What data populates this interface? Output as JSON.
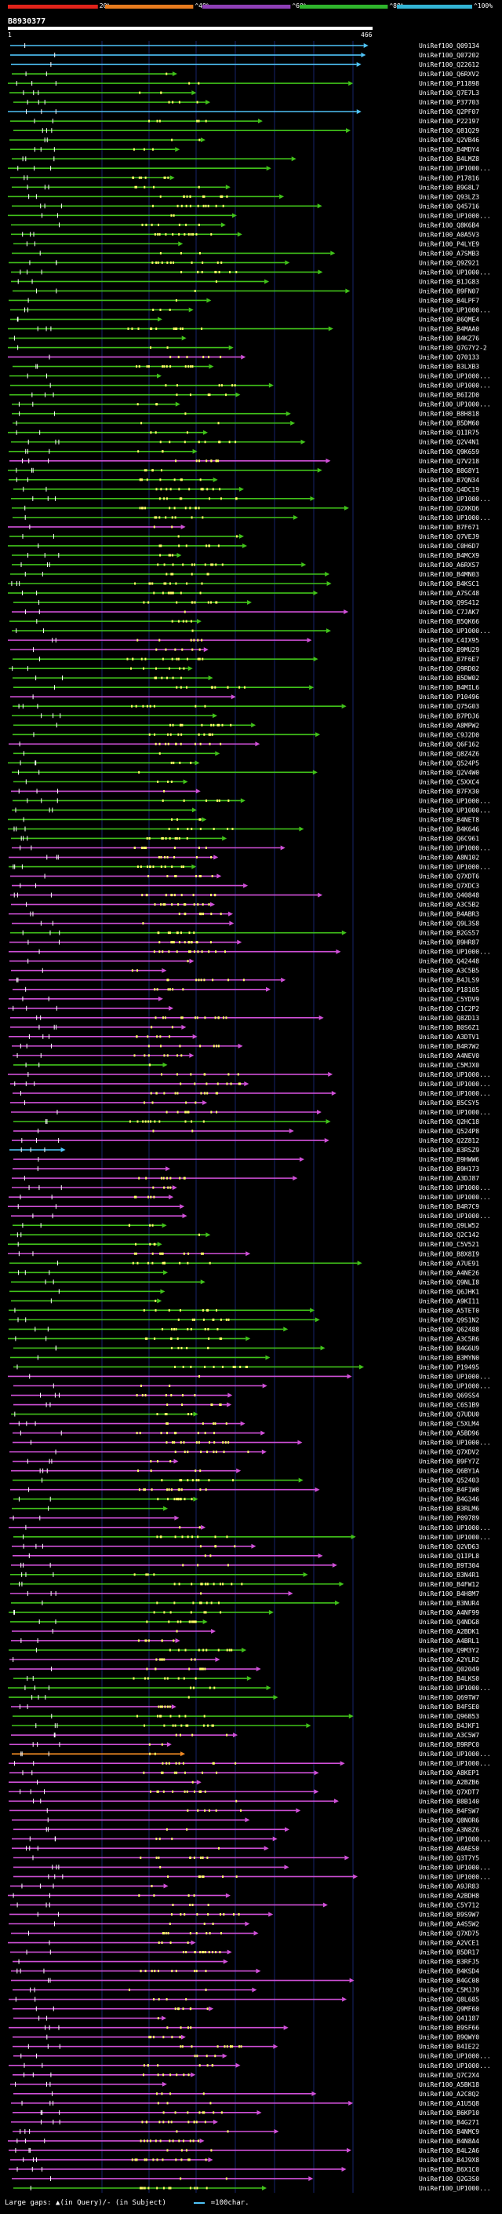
{
  "query": {
    "id": "B8930377",
    "start": "1",
    "end": "466"
  },
  "scale": {
    "segments": [
      {
        "label": "20%",
        "color": "#e2231a"
      },
      {
        "label": "^40%",
        "color": "#e87b1e"
      },
      {
        "label": "^60%",
        "color": "#8e3fb7"
      },
      {
        "label": "^80%",
        "color": "#2fb52c"
      },
      {
        "label": "^100%",
        "color": "#33b5d5"
      }
    ]
  },
  "colors": {
    "cyan": "#4fc3f7",
    "green": "#41c21a",
    "magenta": "#d050d8",
    "orange": "#f08a24",
    "dot": "#ffff66"
  },
  "hits": [
    {
      "label": "UniRef100_Q09134",
      "color": "cyan"
    },
    {
      "label": "UniRef100_Q07202",
      "color": "cyan"
    },
    {
      "label": "UniRef100_Q22612",
      "color": "cyan"
    },
    {
      "label": "UniRef100_Q6RXV2",
      "color": "green"
    },
    {
      "label": "UniRef100_P11898",
      "color": "green"
    },
    {
      "label": "UniRef100_Q7E7L3",
      "color": "green"
    },
    {
      "label": "UniRef100_P37703",
      "color": "green"
    },
    {
      "label": "UniRef100_Q2PF07",
      "color": "cyan"
    },
    {
      "label": "UniRef100_P22197",
      "color": "green"
    },
    {
      "label": "UniRef100_Q81Q29",
      "color": "green"
    },
    {
      "label": "UniRef100_Q2VB46",
      "color": "green"
    },
    {
      "label": "UniRef100_B4MDY4",
      "color": "green"
    },
    {
      "label": "UniRef100_B4LMZ8",
      "color": "green"
    },
    {
      "label": "UniRef100_UP1000...",
      "color": "green"
    },
    {
      "label": "UniRef100_P17816",
      "color": "green"
    },
    {
      "label": "UniRef100_B9G8L7",
      "color": "green"
    },
    {
      "label": "UniRef100_Q93LZ3",
      "color": "green"
    },
    {
      "label": "UniRef100_Q45716",
      "color": "green"
    },
    {
      "label": "UniRef100_UP1000...",
      "color": "green"
    },
    {
      "label": "UniRef100_Q8K6B4",
      "color": "green"
    },
    {
      "label": "UniRef100_A0A5V3",
      "color": "green"
    },
    {
      "label": "UniRef100_P4LYE9",
      "color": "green"
    },
    {
      "label": "UniRef100_A7SMB3",
      "color": "green"
    },
    {
      "label": "UniRef100_Q9Z921",
      "color": "green"
    },
    {
      "label": "UniRef100_UP1000...",
      "color": "green"
    },
    {
      "label": "UniRef100_B1JG83",
      "color": "green"
    },
    {
      "label": "UniRef100_B9FN07",
      "color": "green"
    },
    {
      "label": "UniRef100_B4LPF7",
      "color": "green"
    },
    {
      "label": "UniRef100_UP1000...",
      "color": "green"
    },
    {
      "label": "UniRef100_B6QME4",
      "color": "green"
    },
    {
      "label": "UniRef100_B4MAA0",
      "color": "green"
    },
    {
      "label": "UniRef100_B4KZ76",
      "color": "green"
    },
    {
      "label": "UniRef100_Q7G7Y2-2",
      "color": "green"
    },
    {
      "label": "UniRef100_Q70133",
      "color": "magenta"
    },
    {
      "label": "UniRef100_B3LXB3",
      "color": "green"
    },
    {
      "label": "UniRef100_UP1000...",
      "color": "green"
    },
    {
      "label": "UniRef100_UP1000...",
      "color": "green"
    },
    {
      "label": "UniRef100_B6I2D0",
      "color": "green"
    },
    {
      "label": "UniRef100_UP1000...",
      "color": "green"
    },
    {
      "label": "UniRef100_B8H818",
      "color": "green"
    },
    {
      "label": "UniRef100_B5DM60",
      "color": "green"
    },
    {
      "label": "UniRef100_Q1IR75",
      "color": "green"
    },
    {
      "label": "UniRef100_Q2V4N1",
      "color": "green"
    },
    {
      "label": "UniRef100_Q9K659",
      "color": "green"
    },
    {
      "label": "UniRef100_Q7V218",
      "color": "magenta"
    },
    {
      "label": "UniRef100_B8G8Y1",
      "color": "green"
    },
    {
      "label": "UniRef100_B7QN34",
      "color": "green"
    },
    {
      "label": "UniRef100_Q4DC19",
      "color": "green"
    },
    {
      "label": "UniRef100_UP1000...",
      "color": "green"
    },
    {
      "label": "UniRef100_Q2XKQ6",
      "color": "green"
    },
    {
      "label": "UniRef100_UP1000...",
      "color": "green"
    },
    {
      "label": "UniRef100_B7F671",
      "color": "magenta"
    },
    {
      "label": "UniRef100_Q7VEJ9",
      "color": "green"
    },
    {
      "label": "UniRef100_C0H6D7",
      "color": "green"
    },
    {
      "label": "UniRef100_B4MCX9",
      "color": "green"
    },
    {
      "label": "UniRef100_A6RXS7",
      "color": "green"
    },
    {
      "label": "UniRef100_B4MN03",
      "color": "green"
    },
    {
      "label": "UniRef100_B4KSC1",
      "color": "green"
    },
    {
      "label": "UniRef100_A7SC48",
      "color": "green"
    },
    {
      "label": "UniRef100_Q9S412",
      "color": "green"
    },
    {
      "label": "UniRef100_C7JAK7",
      "color": "magenta"
    },
    {
      "label": "UniRef100_B5QK66",
      "color": "green"
    },
    {
      "label": "UniRef100_UP1000...",
      "color": "green"
    },
    {
      "label": "UniRef100_C4IX95",
      "color": "magenta"
    },
    {
      "label": "UniRef100_B9MU29",
      "color": "magenta"
    },
    {
      "label": "UniRef100_B7F6E7",
      "color": "green"
    },
    {
      "label": "UniRef100_Q9RD02",
      "color": "green"
    },
    {
      "label": "UniRef100_B5DW02",
      "color": "green"
    },
    {
      "label": "UniRef100_B4MIL6",
      "color": "green"
    },
    {
      "label": "UniRef100_P10496",
      "color": "magenta"
    },
    {
      "label": "UniRef100_Q75G03",
      "color": "green"
    },
    {
      "label": "UniRef100_B7PDJ6",
      "color": "green"
    },
    {
      "label": "UniRef100_A8MPW2",
      "color": "green"
    },
    {
      "label": "UniRef100_C9J2D0",
      "color": "green"
    },
    {
      "label": "UniRef100_Q6F162",
      "color": "magenta"
    },
    {
      "label": "UniRef100_Q8Z4Z6",
      "color": "green"
    },
    {
      "label": "UniRef100_Q524P5",
      "color": "green"
    },
    {
      "label": "UniRef100_Q2V4W0",
      "color": "green"
    },
    {
      "label": "UniRef100_C5XXC4",
      "color": "green"
    },
    {
      "label": "UniRef100_B7FX30",
      "color": "magenta"
    },
    {
      "label": "UniRef100_UP1000...",
      "color": "green"
    },
    {
      "label": "UniRef100_UP1000...",
      "color": "green"
    },
    {
      "label": "UniRef100_B4NET8",
      "color": "green"
    },
    {
      "label": "UniRef100_B4K646",
      "color": "green"
    },
    {
      "label": "UniRef100_Q6C961",
      "color": "green"
    },
    {
      "label": "UniRef100_UP1000...",
      "color": "magenta"
    },
    {
      "label": "UniRef100_A8N102",
      "color": "magenta"
    },
    {
      "label": "UniRef100_UP1000...",
      "color": "green"
    },
    {
      "label": "UniRef100_Q7XDT6",
      "color": "magenta"
    },
    {
      "label": "UniRef100_Q7XDC3",
      "color": "magenta"
    },
    {
      "label": "UniRef100_Q40848",
      "color": "magenta"
    },
    {
      "label": "UniRef100_A3C5B2",
      "color": "magenta"
    },
    {
      "label": "UniRef100_B4ABR3",
      "color": "magenta"
    },
    {
      "label": "UniRef100_Q9L3S8",
      "color": "magenta"
    },
    {
      "label": "UniRef100_B2GS57",
      "color": "green"
    },
    {
      "label": "UniRef100_B9HR87",
      "color": "magenta"
    },
    {
      "label": "UniRef100_UP1000...",
      "color": "magenta"
    },
    {
      "label": "UniRef100_Q42448",
      "color": "magenta"
    },
    {
      "label": "UniRef100_A3C5B5",
      "color": "magenta"
    },
    {
      "label": "UniRef100_B4JLS9",
      "color": "magenta"
    },
    {
      "label": "UniRef100_P18105",
      "color": "magenta"
    },
    {
      "label": "UniRef100_C5YDV9",
      "color": "magenta"
    },
    {
      "label": "UniRef100_C1C2P2",
      "color": "magenta"
    },
    {
      "label": "UniRef100_Q8ZD13",
      "color": "magenta"
    },
    {
      "label": "UniRef100_B0S6Z1",
      "color": "magenta"
    },
    {
      "label": "UniRef100_A3DTV1",
      "color": "magenta"
    },
    {
      "label": "UniRef100_B4R7W2",
      "color": "magenta"
    },
    {
      "label": "UniRef100_A4NEV0",
      "color": "magenta"
    },
    {
      "label": "UniRef100_C5MJX0",
      "color": "green"
    },
    {
      "label": "UniRef100_UP1000...",
      "color": "magenta"
    },
    {
      "label": "UniRef100_UP1000...",
      "color": "magenta"
    },
    {
      "label": "UniRef100_UP1000...",
      "color": "magenta"
    },
    {
      "label": "UniRef100_B5CSY5",
      "color": "magenta"
    },
    {
      "label": "UniRef100_UP1000...",
      "color": "magenta"
    },
    {
      "label": "UniRef100_Q2HC18",
      "color": "green"
    },
    {
      "label": "UniRef100_Q524P8",
      "color": "magenta"
    },
    {
      "label": "UniRef100_Q2Z812",
      "color": "magenta"
    },
    {
      "label": "UniRef100_B3RSZ9",
      "color": "cyan"
    },
    {
      "label": "UniRef100_B9HWW6",
      "color": "magenta"
    },
    {
      "label": "UniRef100_B9H173",
      "color": "magenta"
    },
    {
      "label": "UniRef100_A3DJ87",
      "color": "magenta"
    },
    {
      "label": "UniRef100_UP1000...",
      "color": "magenta"
    },
    {
      "label": "UniRef100_UP1000...",
      "color": "magenta"
    },
    {
      "label": "UniRef100_B4R7C9",
      "color": "magenta"
    },
    {
      "label": "UniRef100_UP1000...",
      "color": "magenta"
    },
    {
      "label": "UniRef100_Q9LW52",
      "color": "green"
    },
    {
      "label": "UniRef100_Q2C142",
      "color": "green"
    },
    {
      "label": "UniRef100_C5V521",
      "color": "green"
    },
    {
      "label": "UniRef100_B8X8I9",
      "color": "magenta"
    },
    {
      "label": "UniRef100_A7UE91",
      "color": "green"
    },
    {
      "label": "UniRef100_A4NE26",
      "color": "green"
    },
    {
      "label": "UniRef100_Q9NLI8",
      "color": "green"
    },
    {
      "label": "UniRef100_Q6JHK1",
      "color": "green"
    },
    {
      "label": "UniRef100_A9KI11",
      "color": "green"
    },
    {
      "label": "UniRef100_A5TET0",
      "color": "green"
    },
    {
      "label": "UniRef100_Q9S1N2",
      "color": "green"
    },
    {
      "label": "UniRef100_Q62488",
      "color": "green"
    },
    {
      "label": "UniRef100_A3C5R6",
      "color": "green"
    },
    {
      "label": "UniRef100_B4G6U9",
      "color": "green"
    },
    {
      "label": "UniRef100_B3MYN0",
      "color": "green"
    },
    {
      "label": "UniRef100_P19495",
      "color": "green"
    },
    {
      "label": "UniRef100_UP1000...",
      "color": "magenta"
    },
    {
      "label": "UniRef100_UP1000...",
      "color": "magenta"
    },
    {
      "label": "UniRef100_Q69SS4",
      "color": "magenta"
    },
    {
      "label": "UniRef100_C6S1B9",
      "color": "magenta"
    },
    {
      "label": "UniRef100_Q7UDU0",
      "color": "green"
    },
    {
      "label": "UniRef100_C5XLM4",
      "color": "magenta"
    },
    {
      "label": "UniRef100_A5BD96",
      "color": "magenta"
    },
    {
      "label": "UniRef100_UP1000...",
      "color": "magenta"
    },
    {
      "label": "UniRef100_Q7XDV2",
      "color": "magenta"
    },
    {
      "label": "UniRef100_B9FY7Z",
      "color": "magenta"
    },
    {
      "label": "UniRef100_Q6BY1A",
      "color": "magenta"
    },
    {
      "label": "UniRef100_Q52403",
      "color": "green"
    },
    {
      "label": "UniRef100_B4F1W0",
      "color": "magenta"
    },
    {
      "label": "UniRef100_B4G346",
      "color": "green"
    },
    {
      "label": "UniRef100_B3RLM6",
      "color": "green"
    },
    {
      "label": "UniRef100_P09789",
      "color": "magenta"
    },
    {
      "label": "UniRef100_UP1000...",
      "color": "magenta"
    },
    {
      "label": "UniRef100_UP1000...",
      "color": "green"
    },
    {
      "label": "UniRef100_Q2VD63",
      "color": "magenta"
    },
    {
      "label": "UniRef100_Q1IPL8",
      "color": "magenta"
    },
    {
      "label": "UniRef100_B9T304",
      "color": "magenta"
    },
    {
      "label": "UniRef100_B3N4R1",
      "color": "green"
    },
    {
      "label": "UniRef100_B4FW12",
      "color": "green"
    },
    {
      "label": "UniRef100_B4H8M7",
      "color": "magenta"
    },
    {
      "label": "UniRef100_B3NUR4",
      "color": "green"
    },
    {
      "label": "UniRef100_A4NF99",
      "color": "green"
    },
    {
      "label": "UniRef100_Q4NDG8",
      "color": "green"
    },
    {
      "label": "UniRef100_A2BDK1",
      "color": "magenta"
    },
    {
      "label": "UniRef100_A4BRL1",
      "color": "magenta"
    },
    {
      "label": "UniRef100_Q9M3Y2",
      "color": "green"
    },
    {
      "label": "UniRef100_A2YLR2",
      "color": "magenta"
    },
    {
      "label": "UniRef100_Q02049",
      "color": "magenta"
    },
    {
      "label": "UniRef100_B4LKS0",
      "color": "green"
    },
    {
      "label": "UniRef100_UP1000...",
      "color": "green"
    },
    {
      "label": "UniRef100_Q69TW7",
      "color": "green"
    },
    {
      "label": "UniRef100_B4FSE0",
      "color": "magenta"
    },
    {
      "label": "UniRef100_Q96B53",
      "color": "green"
    },
    {
      "label": "UniRef100_B4JKF1",
      "color": "green"
    },
    {
      "label": "UniRef100_A3C5W7",
      "color": "magenta"
    },
    {
      "label": "UniRef100_B9RPC0",
      "color": "magenta"
    },
    {
      "label": "UniRef100_UP1000...",
      "color": "orange"
    },
    {
      "label": "UniRef100_UP1000...",
      "color": "magenta"
    },
    {
      "label": "UniRef100_A8KEP1",
      "color": "magenta"
    },
    {
      "label": "UniRef100_A2BZB6",
      "color": "magenta"
    },
    {
      "label": "UniRef100_Q7XDT7",
      "color": "magenta"
    },
    {
      "label": "UniRef100_B8B140",
      "color": "magenta"
    },
    {
      "label": "UniRef100_B4FSW7",
      "color": "magenta"
    },
    {
      "label": "UniRef100_Q8NOR6",
      "color": "magenta"
    },
    {
      "label": "UniRef100_A3N8Z6",
      "color": "magenta"
    },
    {
      "label": "UniRef100_UP1000...",
      "color": "magenta"
    },
    {
      "label": "UniRef100_A0AES0",
      "color": "magenta"
    },
    {
      "label": "UniRef100_Q3T7Y5",
      "color": "magenta"
    },
    {
      "label": "UniRef100_UP1000...",
      "color": "magenta"
    },
    {
      "label": "UniRef100_UP1000...",
      "color": "magenta"
    },
    {
      "label": "UniRef100_A9JR83",
      "color": "magenta"
    },
    {
      "label": "UniRef100_A2BDH8",
      "color": "magenta"
    },
    {
      "label": "UniRef100_C5Y712",
      "color": "magenta"
    },
    {
      "label": "UniRef100_B9S9W7",
      "color": "magenta"
    },
    {
      "label": "UniRef100_A4S5W2",
      "color": "magenta"
    },
    {
      "label": "UniRef100_Q7XD75",
      "color": "magenta"
    },
    {
      "label": "UniRef100_A2VCE1",
      "color": "magenta"
    },
    {
      "label": "UniRef100_B5DR17",
      "color": "magenta"
    },
    {
      "label": "UniRef100_B3RFJ5",
      "color": "magenta"
    },
    {
      "label": "UniRef100_B4KSD4",
      "color": "magenta"
    },
    {
      "label": "UniRef100_B4GC08",
      "color": "magenta"
    },
    {
      "label": "UniRef100_C5MJJ9",
      "color": "magenta"
    },
    {
      "label": "UniRef100_Q8L685",
      "color": "magenta"
    },
    {
      "label": "UniRef100_Q9MF60",
      "color": "magenta"
    },
    {
      "label": "UniRef100_Q41187",
      "color": "magenta"
    },
    {
      "label": "UniRef100_B9SF66",
      "color": "magenta"
    },
    {
      "label": "UniRef100_B9QWY0",
      "color": "magenta"
    },
    {
      "label": "UniRef100_B4IE22",
      "color": "magenta"
    },
    {
      "label": "UniRef100_UP1000...",
      "color": "magenta"
    },
    {
      "label": "UniRef100_UP1000...",
      "color": "magenta"
    },
    {
      "label": "UniRef100_Q7C2X4",
      "color": "magenta"
    },
    {
      "label": "UniRef100_A5BK18",
      "color": "magenta"
    },
    {
      "label": "UniRef100_A2C8Q2",
      "color": "magenta"
    },
    {
      "label": "UniRef100_A1U5Q8",
      "color": "magenta"
    },
    {
      "label": "UniRef100_B6KP10",
      "color": "magenta"
    },
    {
      "label": "UniRef100_B4G271",
      "color": "magenta"
    },
    {
      "label": "UniRef100_B4NMC9",
      "color": "magenta"
    },
    {
      "label": "UniRef100_B4N8A4",
      "color": "magenta"
    },
    {
      "label": "UniRef100_B4L2A6",
      "color": "magenta"
    },
    {
      "label": "UniRef100_B4J9X8",
      "color": "magenta"
    },
    {
      "label": "UniRef100_B6X1C0",
      "color": "magenta"
    },
    {
      "label": "UniRef100_Q2G3S0",
      "color": "magenta"
    },
    {
      "label": "UniRef100_UP1000...",
      "color": "green"
    }
  ],
  "footer": {
    "gaps_text": "Large gaps: ▲(in Query)/- (in Subject)",
    "legend_text": "=100char."
  }
}
